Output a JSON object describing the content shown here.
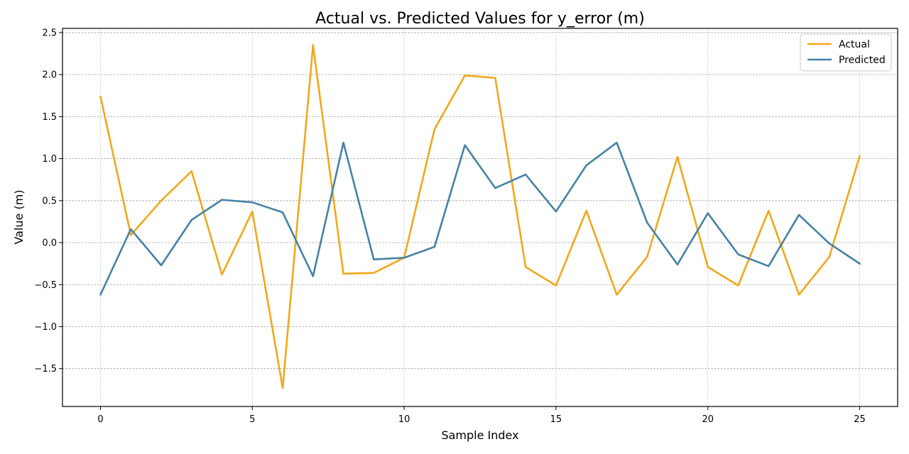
{
  "chart_data": {
    "type": "line",
    "title": "Actual vs. Predicted Values for y_error (m)",
    "xlabel": "Sample Index",
    "ylabel": "Value (m)",
    "xlim": [
      -1.25,
      26.25
    ],
    "ylim": [
      -1.95,
      2.55
    ],
    "xticks": [
      0,
      5,
      10,
      15,
      20,
      25
    ],
    "yticks": [
      -1.5,
      -1.0,
      -0.5,
      0.0,
      0.5,
      1.0,
      1.5,
      2.0,
      2.5
    ],
    "ytick_labels": [
      "−1.5",
      "−1.0",
      "−0.5",
      "0.0",
      "0.5",
      "1.0",
      "1.5",
      "2.0",
      "2.5"
    ],
    "grid": true,
    "legend_position": "top-right",
    "x": [
      0,
      1,
      2,
      3,
      4,
      5,
      6,
      7,
      8,
      9,
      10,
      11,
      12,
      13,
      14,
      15,
      16,
      17,
      18,
      19,
      20,
      21,
      22,
      23,
      24,
      25
    ],
    "series": [
      {
        "name": "Actual",
        "color": "#F2A71B",
        "values": [
          1.74,
          0.09,
          0.5,
          0.85,
          -0.38,
          0.37,
          -1.73,
          2.35,
          -0.37,
          -0.36,
          -0.18,
          1.35,
          1.99,
          1.96,
          -0.29,
          -0.51,
          0.38,
          -0.62,
          -0.17,
          1.02,
          -0.29,
          -0.51,
          0.38,
          -0.62,
          -0.17,
          1.03
        ]
      },
      {
        "name": "Predicted",
        "color": "#4682A6",
        "values": [
          -0.62,
          0.16,
          -0.27,
          0.27,
          0.51,
          0.48,
          0.36,
          -0.4,
          1.19,
          -0.2,
          -0.18,
          -0.05,
          1.16,
          0.65,
          0.81,
          0.37,
          0.92,
          1.19,
          0.24,
          -0.26,
          0.35,
          -0.14,
          -0.28,
          0.33,
          -0.01,
          -0.25
        ]
      }
    ]
  }
}
